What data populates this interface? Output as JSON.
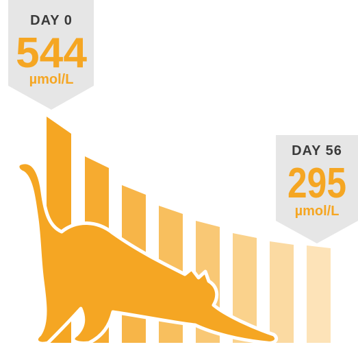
{
  "callouts": [
    {
      "day": "DAY 0",
      "value": "544",
      "unit": "µmol/L"
    },
    {
      "day": "DAY 56",
      "value": "295",
      "unit": "µmol/L"
    }
  ]
}
